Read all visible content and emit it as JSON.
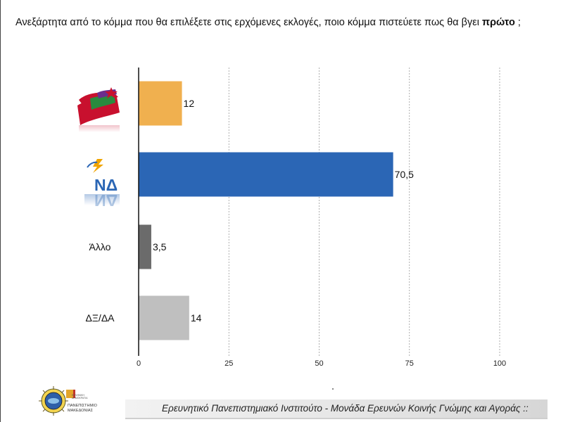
{
  "title": {
    "prefix": "Ανεξάρτητα από το κόμμα που θα επιλέξετε στις ερχόμενες εκλογές, ποιο κόμμα πιστεύετε πως θα βγει ",
    "emphasis": "πρώτο",
    "suffix": " ;"
  },
  "colors": {
    "syriza": "#F0B04F",
    "nd": "#2B66B5",
    "other": "#6B6B6B",
    "dk": "#BFBFBF"
  },
  "chart_data": {
    "type": "bar",
    "orientation": "horizontal",
    "categories": [
      "ΣΥΡΙΖΑ logo",
      "ΝΔ",
      "Άλλο",
      "ΔΞ/ΔΑ"
    ],
    "category_labels": [
      "",
      "",
      "Άλλο",
      "ΔΞ/ΔΑ"
    ],
    "values": [
      12,
      70.5,
      3.5,
      14
    ],
    "value_labels": [
      "12",
      "70,5",
      "3,5",
      "14"
    ],
    "bar_colors": [
      "#F0B04F",
      "#2B66B5",
      "#6B6B6B",
      "#BFBFBF"
    ],
    "xlim": [
      0,
      100
    ],
    "xticks": [
      0,
      25,
      50,
      75,
      100
    ],
    "xtick_labels": [
      "0",
      "25",
      "50",
      "75",
      "100"
    ],
    "grid": "vertical dashed",
    "title": "",
    "xlabel": "",
    "ylabel": ""
  },
  "logos": {
    "nd_text": "ΝΔ",
    "nd_reflection": "ΝΔ"
  },
  "footer": {
    "text": "Ερευνητικό Πανεπιστημιακό Ινστιτούτο - Μονάδα Ερευνών Κοινής Γνώμης και Αγοράς ::",
    "university_line1": "ΠΑΝΕΠΙΣΤΗΜΙΟ",
    "university_line2": "ΜΑΚΕΔΟΝΙΑΣ",
    "university_small": "ΕΛΛΗΝΙΚΗ ΔΗΜΟΚΡΑΤΙΑ"
  }
}
